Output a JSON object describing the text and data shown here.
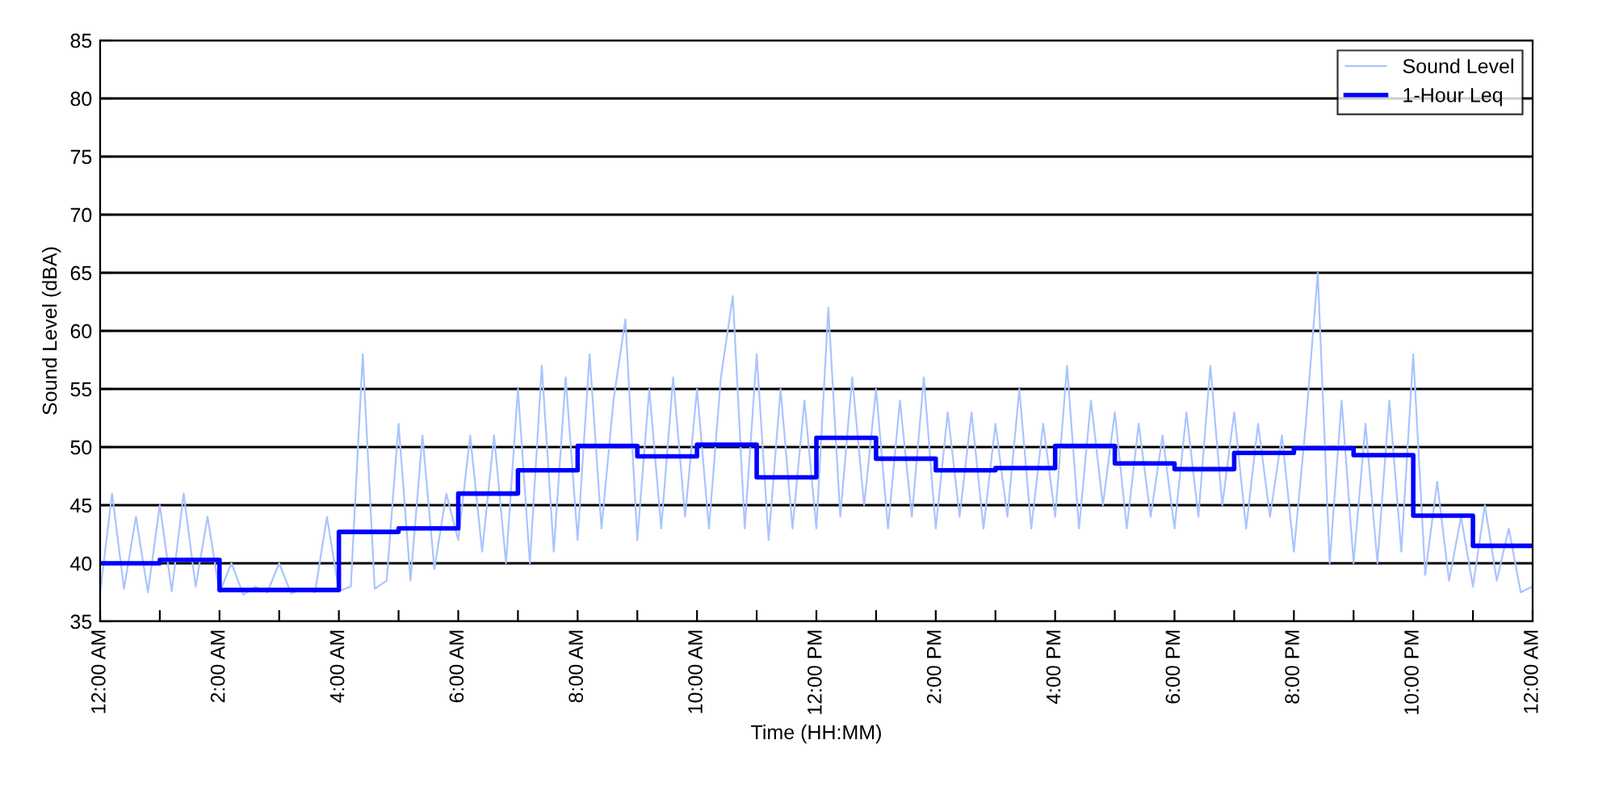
{
  "chart_data": {
    "type": "line",
    "xlabel": "Time (HH:MM)",
    "ylabel": "Sound Level (dBA)",
    "xlim": [
      0,
      24
    ],
    "xticks": [
      {
        "value": 0,
        "label": "12:00 AM"
      },
      {
        "value": 1,
        "label": null
      },
      {
        "value": 2,
        "label": "2:00 AM"
      },
      {
        "value": 3,
        "label": null
      },
      {
        "value": 4,
        "label": "4:00 AM"
      },
      {
        "value": 5,
        "label": null
      },
      {
        "value": 6,
        "label": "6:00 AM"
      },
      {
        "value": 7,
        "label": null
      },
      {
        "value": 8,
        "label": "8:00 AM"
      },
      {
        "value": 9,
        "label": null
      },
      {
        "value": 10,
        "label": "10:00 AM"
      },
      {
        "value": 11,
        "label": null
      },
      {
        "value": 12,
        "label": "12:00 PM"
      },
      {
        "value": 13,
        "label": null
      },
      {
        "value": 14,
        "label": "2:00 PM"
      },
      {
        "value": 15,
        "label": null
      },
      {
        "value": 16,
        "label": "4:00 PM"
      },
      {
        "value": 17,
        "label": null
      },
      {
        "value": 18,
        "label": "6:00 PM"
      },
      {
        "value": 19,
        "label": null
      },
      {
        "value": 20,
        "label": "8:00 PM"
      },
      {
        "value": 21,
        "label": null
      },
      {
        "value": 22,
        "label": "10:00 PM"
      },
      {
        "value": 23,
        "label": null
      },
      {
        "value": 24,
        "label": "12:00 AM"
      }
    ],
    "ylim": [
      35,
      85
    ],
    "yticks": [
      35,
      40,
      45,
      50,
      55,
      60,
      65,
      70,
      75,
      80,
      85
    ],
    "grid": "y",
    "legend": "top right",
    "series": [
      {
        "name": "Sound Level",
        "color": "#aac4ff",
        "x": [
          0.0,
          0.2,
          0.4,
          0.6,
          0.8,
          1.0,
          1.2,
          1.4,
          1.6,
          1.8,
          2.0,
          2.2,
          2.4,
          2.6,
          2.8,
          3.0,
          3.2,
          3.4,
          3.6,
          3.8,
          4.0,
          4.2,
          4.4,
          4.6,
          4.8,
          5.0,
          5.2,
          5.4,
          5.6,
          5.8,
          6.0,
          6.2,
          6.4,
          6.6,
          6.8,
          7.0,
          7.2,
          7.4,
          7.6,
          7.8,
          8.0,
          8.2,
          8.4,
          8.6,
          8.8,
          9.0,
          9.2,
          9.4,
          9.6,
          9.8,
          10.0,
          10.2,
          10.4,
          10.6,
          10.8,
          11.0,
          11.2,
          11.4,
          11.6,
          11.8,
          12.0,
          12.2,
          12.4,
          12.6,
          12.8,
          13.0,
          13.2,
          13.4,
          13.6,
          13.8,
          14.0,
          14.2,
          14.4,
          14.6,
          14.8,
          15.0,
          15.2,
          15.4,
          15.6,
          15.8,
          16.0,
          16.2,
          16.4,
          16.6,
          16.8,
          17.0,
          17.2,
          17.4,
          17.6,
          17.8,
          18.0,
          18.2,
          18.4,
          18.6,
          18.8,
          19.0,
          19.2,
          19.4,
          19.6,
          19.8,
          20.0,
          20.2,
          20.4,
          20.6,
          20.8,
          21.0,
          21.2,
          21.4,
          21.6,
          21.8,
          22.0,
          22.2,
          22.4,
          22.6,
          22.8,
          23.0,
          23.2,
          23.4,
          23.6,
          23.8,
          24.0
        ],
        "values": [
          37.5,
          46,
          37.8,
          44,
          37.5,
          45,
          37.6,
          46,
          38,
          44,
          37.5,
          40,
          37.3,
          38,
          37.5,
          40,
          37.4,
          37.8,
          37.5,
          44,
          37.6,
          38,
          58,
          37.8,
          38.5,
          52,
          38.5,
          51,
          39.5,
          46,
          42,
          51,
          41,
          51,
          40,
          55,
          40,
          57,
          41,
          56,
          42,
          58,
          43,
          54,
          61,
          42,
          55,
          43,
          56,
          44,
          55,
          43,
          56,
          63,
          43,
          58,
          42,
          55,
          43,
          54,
          43,
          62,
          44,
          56,
          45,
          55,
          43,
          54,
          44,
          56,
          43,
          53,
          44,
          53,
          43,
          52,
          44,
          55,
          43,
          52,
          44,
          57,
          43,
          54,
          45,
          53,
          43,
          52,
          44,
          51,
          43,
          53,
          44,
          57,
          45,
          53,
          43,
          52,
          44,
          51,
          41,
          52,
          65,
          40,
          54,
          40,
          52,
          40,
          54,
          41,
          58,
          39,
          47,
          38.5,
          44,
          38,
          45,
          38.5,
          43,
          37.5,
          38
        ]
      },
      {
        "name": "1-Hour Leq",
        "type": "step",
        "color": "#0000ff",
        "x": [
          0,
          1,
          2,
          3,
          4,
          5,
          6,
          7,
          8,
          9,
          10,
          11,
          12,
          13,
          14,
          15,
          16,
          17,
          18,
          19,
          20,
          21,
          22,
          23,
          24
        ],
        "values": [
          40.0,
          40.3,
          37.7,
          37.7,
          42.7,
          43.0,
          46.0,
          48.0,
          50.1,
          49.2,
          50.2,
          47.4,
          50.8,
          49.0,
          48.0,
          48.2,
          50.1,
          48.6,
          48.1,
          49.5,
          49.9,
          49.3,
          44.1,
          41.5,
          41.5
        ]
      }
    ]
  }
}
